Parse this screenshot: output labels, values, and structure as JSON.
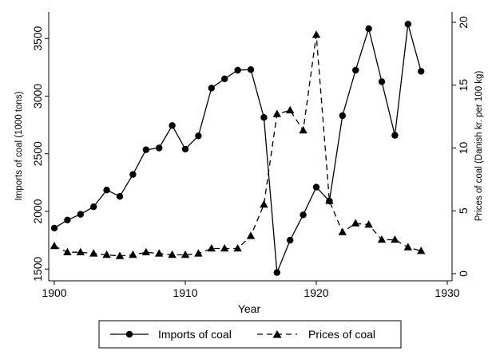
{
  "chart_data": {
    "type": "line",
    "xlabel": "Year",
    "ylabel_left": "Imports of coal (1000 tons)",
    "ylabel_right": "Prices of coal (Danish kr. per 100 kg)",
    "xlim": [
      1900,
      1930
    ],
    "ylim_left": [
      1460,
      3640
    ],
    "ylim_right": [
      0,
      20
    ],
    "x_ticks": [
      "1900",
      "1910",
      "1920",
      "1930"
    ],
    "y_left_ticks": [
      "1500",
      "2000",
      "2500",
      "3000",
      "3500"
    ],
    "y_right_ticks": [
      "0",
      "5",
      "10",
      "15",
      "20"
    ],
    "grid": false,
    "legend_position": "bottom",
    "series": [
      {
        "name": "Imports of coal",
        "axis": "left",
        "style": "solid",
        "marker": "circle",
        "x": [
          1900,
          1901,
          1902,
          1903,
          1904,
          1905,
          1906,
          1907,
          1908,
          1909,
          1910,
          1911,
          1912,
          1913,
          1914,
          1915,
          1916,
          1917,
          1918,
          1919,
          1920,
          1921,
          1922,
          1923,
          1924,
          1925,
          1926,
          1927,
          1928
        ],
        "values": [
          1855,
          1925,
          1975,
          2040,
          2185,
          2130,
          2320,
          2535,
          2550,
          2745,
          2540,
          2655,
          3070,
          3150,
          3225,
          3230,
          2815,
          1470,
          1750,
          1970,
          2210,
          2090,
          2830,
          3225,
          3585,
          3125,
          2660,
          3625,
          3215
        ]
      },
      {
        "name": "Prices of coal",
        "axis": "right",
        "style": "dashed",
        "marker": "triangle",
        "x": [
          1900,
          1901,
          1902,
          1903,
          1904,
          1905,
          1906,
          1907,
          1908,
          1909,
          1910,
          1911,
          1912,
          1913,
          1914,
          1915,
          1916,
          1917,
          1918,
          1919,
          1920,
          1921,
          1922,
          1923,
          1924,
          1925,
          1926,
          1927,
          1928
        ],
        "values": [
          2.2,
          1.7,
          1.7,
          1.6,
          1.5,
          1.4,
          1.5,
          1.7,
          1.6,
          1.5,
          1.5,
          1.6,
          2.0,
          2.0,
          2.0,
          3.0,
          5.5,
          12.7,
          13.0,
          11.4,
          19.0,
          5.8,
          3.3,
          4.0,
          3.9,
          2.7,
          2.7,
          2.1,
          1.8
        ]
      }
    ]
  }
}
